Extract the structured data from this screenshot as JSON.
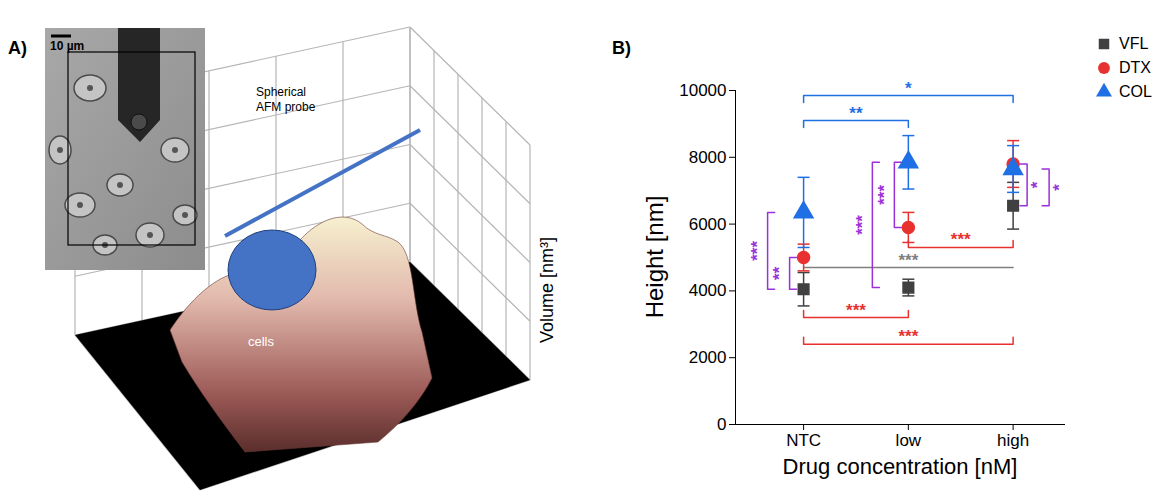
{
  "panel_a": {
    "letter": "A)",
    "scale_bar": "10 µm",
    "probe_label": [
      "Spherical",
      "AFM probe"
    ],
    "surface_label": "cells",
    "axis_label": "Volume [nm³]"
  },
  "chart_data": {
    "letter": "B)",
    "type": "scatter",
    "x_label": "Drug concentration [nM]",
    "y_label": "Height [nm]",
    "categories": [
      "NTC",
      "low",
      "high"
    ],
    "ylim": [
      0,
      10000
    ],
    "yticks": [
      0,
      2000,
      4000,
      6000,
      8000,
      10000
    ],
    "legend": "top-right",
    "series": [
      {
        "name": "VFL",
        "color": "#404040",
        "marker": "square",
        "values": [
          4050,
          4100,
          6550
        ],
        "errors": [
          500,
          250,
          700
        ]
      },
      {
        "name": "DTX",
        "color": "#e8312f",
        "marker": "circle",
        "values": [
          5000,
          5900,
          7800
        ],
        "errors": [
          400,
          450,
          700
        ]
      },
      {
        "name": "COL",
        "color": "#1f6fe5",
        "marker": "triangle",
        "values": [
          6350,
          7850,
          7650
        ],
        "errors": [
          1050,
          800,
          700
        ]
      }
    ],
    "comparisons": [
      {
        "series": "COL",
        "color": "#1f6fe5",
        "between": [
          "NTC",
          "low"
        ],
        "at": 9100,
        "label": "**"
      },
      {
        "series": "COL",
        "color": "#1f6fe5",
        "between": [
          "NTC",
          "high"
        ],
        "at": 9850,
        "label": "*"
      },
      {
        "series": "DTX",
        "color": "#e8312f",
        "between": [
          "NTC",
          "low"
        ],
        "at": 3200,
        "label": "***"
      },
      {
        "series": "DTX",
        "color": "#e8312f",
        "between": [
          "low",
          "high"
        ],
        "at": 5300,
        "label": "***"
      },
      {
        "series": "DTX",
        "color": "#e8312f",
        "between": [
          "NTC",
          "high"
        ],
        "at": 2400,
        "label": "***"
      },
      {
        "series": "VFL",
        "color": "#7f7f7f",
        "between": [
          "NTC",
          "high"
        ],
        "at": 4700,
        "label": "***"
      }
    ],
    "within": [
      {
        "category": "NTC",
        "color": "#9b30d9",
        "from": 5000,
        "to": 4050,
        "label": "**"
      },
      {
        "category": "NTC",
        "color": "#9b30d9",
        "from": 6350,
        "to": 4050,
        "label": "***"
      },
      {
        "category": "low",
        "color": "#9b30d9",
        "from": 7850,
        "to": 5900,
        "label": "***"
      },
      {
        "category": "low",
        "color": "#9b30d9",
        "from": 7850,
        "to": 4100,
        "label": "***"
      },
      {
        "category": "high",
        "color": "#9b30d9",
        "from": 7800,
        "to": 6550,
        "label": "*"
      },
      {
        "category": "high",
        "color": "#9b30d9",
        "from": 7650,
        "to": 6550,
        "label": "*"
      }
    ]
  }
}
